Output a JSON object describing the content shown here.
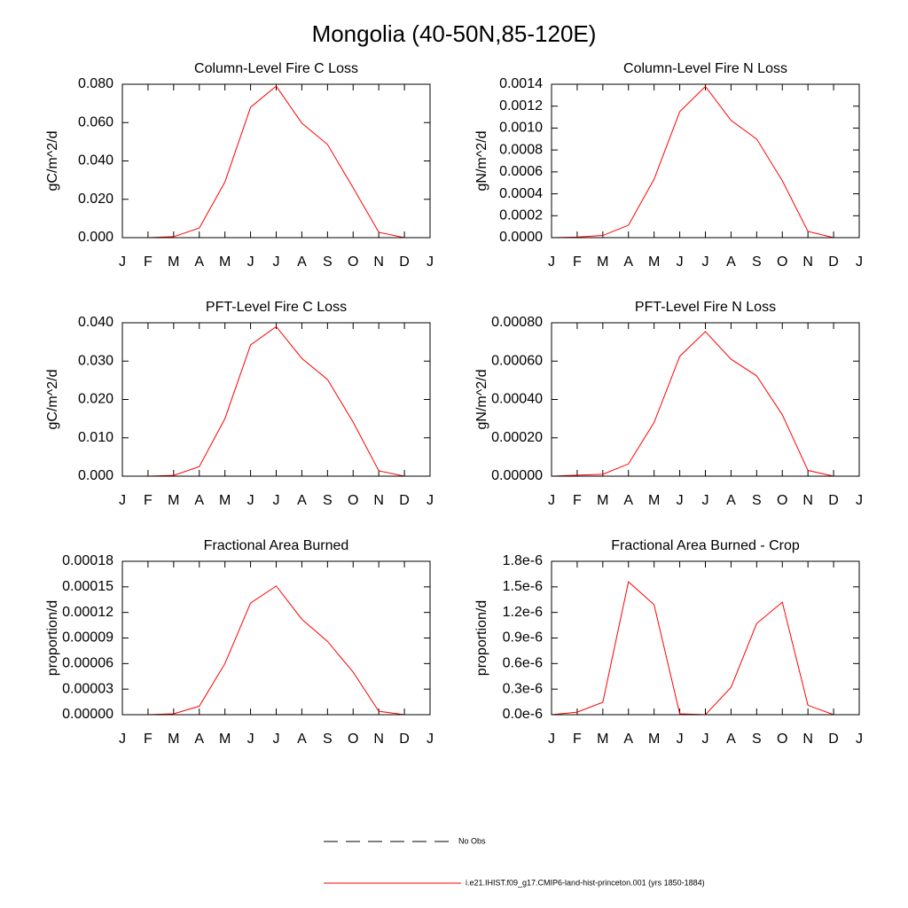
{
  "title": "Mongolia (40-50N,85-120E)",
  "legend": [
    {
      "name": "No Obs",
      "color": "#000000",
      "dash": true
    },
    {
      "name": "i.e21.IHIST.f09_g17.CMIP6-land-hist-princeton.001 (yrs 1850-1884)",
      "color": "#ff0000",
      "dash": false
    }
  ],
  "chart_data": [
    {
      "type": "line",
      "title": "Column-Level Fire C Loss",
      "y_label": "gC/m^2/d",
      "categories": [
        "J",
        "F",
        "M",
        "A",
        "M",
        "J",
        "J",
        "A",
        "S",
        "O",
        "N",
        "D",
        "J"
      ],
      "series": [
        {
          "color": "#ff0000",
          "values": [
            0,
            0,
            0.0005,
            0.005,
            0.029,
            0.068,
            0.079,
            0.0597,
            0.0486,
            0.026,
            0.0028,
            0,
            0
          ]
        }
      ],
      "ylim": [
        0,
        0.08
      ],
      "yticks": [
        {
          "value": 0,
          "label": "0.000"
        },
        {
          "value": 0.02,
          "label": "0.020"
        },
        {
          "value": 0.04,
          "label": "0.040"
        },
        {
          "value": 0.06,
          "label": "0.060"
        },
        {
          "value": 0.08,
          "label": "0.080"
        }
      ]
    },
    {
      "type": "line",
      "title": "Column-Level Fire N Loss",
      "y_label": "gN/m^2/d",
      "categories": [
        "J",
        "F",
        "M",
        "A",
        "M",
        "J",
        "J",
        "A",
        "S",
        "O",
        "N",
        "D",
        "J"
      ],
      "series": [
        {
          "color": "#ff0000",
          "values": [
            0,
            5e-06,
            2e-05,
            0.000113,
            0.000534,
            0.00115,
            0.00138,
            0.00107,
            0.0009,
            0.00052,
            5.7e-05,
            0,
            0
          ]
        }
      ],
      "ylim": [
        0,
        0.0014
      ],
      "yticks": [
        {
          "value": 0,
          "label": "0.0000"
        },
        {
          "value": 0.0002,
          "label": "0.0002"
        },
        {
          "value": 0.0004,
          "label": "0.0004"
        },
        {
          "value": 0.0006,
          "label": "0.0006"
        },
        {
          "value": 0.0008,
          "label": "0.0008"
        },
        {
          "value": 0.001,
          "label": "0.0010"
        },
        {
          "value": 0.0012,
          "label": "0.0012"
        },
        {
          "value": 0.0014,
          "label": "0.0014"
        }
      ]
    },
    {
      "type": "line",
      "title": "PFT-Level Fire C Loss",
      "y_label": "gC/m^2/d",
      "categories": [
        "J",
        "F",
        "M",
        "A",
        "M",
        "J",
        "J",
        "A",
        "S",
        "O",
        "N",
        "D",
        "J"
      ],
      "series": [
        {
          "color": "#ff0000",
          "values": [
            0,
            0,
            0.0002,
            0.0025,
            0.015,
            0.0342,
            0.039,
            0.0307,
            0.0252,
            0.0141,
            0.0014,
            0,
            0
          ]
        }
      ],
      "ylim": [
        0,
        0.04
      ],
      "yticks": [
        {
          "value": 0,
          "label": "0.000"
        },
        {
          "value": 0.01,
          "label": "0.010"
        },
        {
          "value": 0.02,
          "label": "0.020"
        },
        {
          "value": 0.03,
          "label": "0.030"
        },
        {
          "value": 0.04,
          "label": "0.040"
        }
      ]
    },
    {
      "type": "line",
      "title": "PFT-Level Fire N Loss",
      "y_label": "gN/m^2/d",
      "categories": [
        "J",
        "F",
        "M",
        "A",
        "M",
        "J",
        "J",
        "A",
        "S",
        "O",
        "N",
        "D",
        "J"
      ],
      "series": [
        {
          "color": "#ff0000",
          "values": [
            0,
            5e-06,
            1e-05,
            6.4e-05,
            0.00028,
            0.000625,
            0.000754,
            0.00061,
            0.000523,
            0.00032,
            3e-05,
            0,
            0
          ]
        }
      ],
      "ylim": [
        0,
        0.0008
      ],
      "yticks": [
        {
          "value": 0,
          "label": "0.00000"
        },
        {
          "value": 0.0002,
          "label": "0.00020"
        },
        {
          "value": 0.0004,
          "label": "0.00040"
        },
        {
          "value": 0.0006,
          "label": "0.00060"
        },
        {
          "value": 0.0008,
          "label": "0.00080"
        }
      ]
    },
    {
      "type": "line",
      "title": "Fractional Area Burned",
      "y_label": "proportion/d",
      "categories": [
        "J",
        "F",
        "M",
        "A",
        "M",
        "J",
        "J",
        "A",
        "S",
        "O",
        "N",
        "D",
        "J"
      ],
      "series": [
        {
          "color": "#ff0000",
          "values": [
            0,
            0,
            1e-06,
            1e-05,
            6e-05,
            0.000131,
            0.000151,
            0.000112,
            8.6e-05,
            5e-05,
            4e-06,
            0,
            0
          ]
        }
      ],
      "ylim": [
        0,
        0.00018
      ],
      "yticks": [
        {
          "value": 0,
          "label": "0.00000"
        },
        {
          "value": 3e-05,
          "label": "0.00003"
        },
        {
          "value": 6e-05,
          "label": "0.00006"
        },
        {
          "value": 9e-05,
          "label": "0.00009"
        },
        {
          "value": 0.00012,
          "label": "0.00012"
        },
        {
          "value": 0.00015,
          "label": "0.00015"
        },
        {
          "value": 0.00018,
          "label": "0.00018"
        }
      ]
    },
    {
      "type": "line",
      "title": "Fractional Area Burned - Crop",
      "y_label": "proportion/d",
      "categories": [
        "J",
        "F",
        "M",
        "A",
        "M",
        "J",
        "J",
        "A",
        "S",
        "O",
        "N",
        "D",
        "J"
      ],
      "series": [
        {
          "color": "#ff0000",
          "values": [
            0,
            3e-08,
            1.46e-07,
            1.56e-06,
            1.29e-06,
            1e-08,
            0,
            3.2e-07,
            1.07e-06,
            1.32e-06,
            1.1e-07,
            0,
            0
          ]
        }
      ],
      "ylim": [
        0,
        1.8e-06
      ],
      "yticks": [
        {
          "value": 0,
          "label": "0.0e-6"
        },
        {
          "value": 3e-07,
          "label": "0.3e-6"
        },
        {
          "value": 6e-07,
          "label": "0.6e-6"
        },
        {
          "value": 9e-07,
          "label": "0.9e-6"
        },
        {
          "value": 1.2e-06,
          "label": "1.2e-6"
        },
        {
          "value": 1.5e-06,
          "label": "1.5e-6"
        },
        {
          "value": 1.8e-06,
          "label": "1.8e-6"
        }
      ]
    }
  ]
}
